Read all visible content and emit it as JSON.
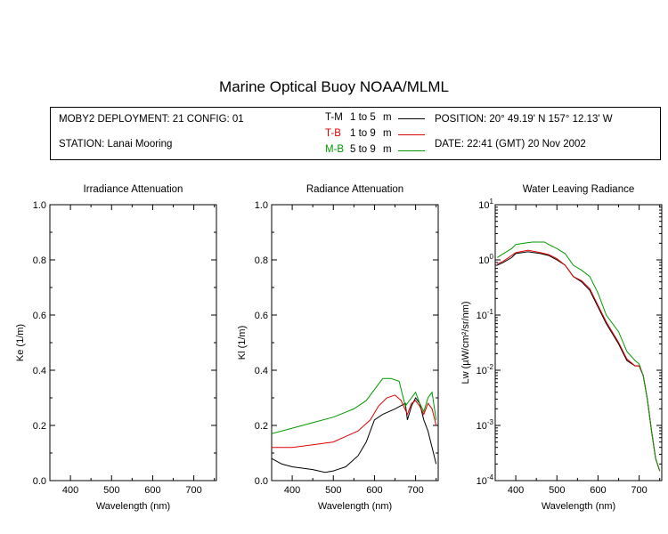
{
  "title": "Marine Optical Buoy NOAA/MLML",
  "info": {
    "deployment": "MOBY2 DEPLOYMENT: 21 CONFIG: 01",
    "station": "STATION: Lanai Mooring",
    "position": "POSITION: 20° 49.19' N   157° 12.13' W",
    "date": "DATE: 22:41 (GMT) 20 Nov 2002",
    "legend": [
      {
        "code": "T-M",
        "range": "1 to 5",
        "unit": "m",
        "color": "#000000"
      },
      {
        "code": "T-B",
        "range": "1 to 9",
        "unit": "m",
        "color": "#dd0000"
      },
      {
        "code": "M-B",
        "range": "5 to 9",
        "unit": "m",
        "color": "#009900"
      }
    ]
  },
  "chart_data": [
    {
      "type": "line",
      "title": "Irradiance Attenuation",
      "xlabel": "Wavelength (nm)",
      "ylabel": "Ke  (1/m)",
      "xlim": [
        350,
        755
      ],
      "ylim": [
        0.0,
        1.0
      ],
      "xticks": [
        400,
        500,
        600,
        700
      ],
      "yticks": [
        "0.0",
        "0.2",
        "0.4",
        "0.6",
        "0.8",
        "1.0"
      ],
      "series": []
    },
    {
      "type": "line",
      "title": "Radiance Attenuation",
      "xlabel": "Wavelength (nm)",
      "ylabel": "Kl  (1/m)",
      "xlim": [
        350,
        755
      ],
      "ylim": [
        0.0,
        1.0
      ],
      "xticks": [
        400,
        500,
        600,
        700
      ],
      "yticks": [
        "0.0",
        "0.2",
        "0.4",
        "0.6",
        "0.8",
        "1.0"
      ],
      "series": [
        {
          "name": "T-M",
          "color": "#000000",
          "x": [
            350,
            375,
            400,
            450,
            480,
            500,
            530,
            560,
            580,
            600,
            620,
            650,
            675,
            680,
            690,
            700,
            710,
            720,
            730,
            740,
            750
          ],
          "y": [
            0.08,
            0.06,
            0.05,
            0.04,
            0.03,
            0.035,
            0.05,
            0.09,
            0.14,
            0.22,
            0.24,
            0.26,
            0.28,
            0.22,
            0.27,
            0.3,
            0.28,
            0.22,
            0.18,
            0.12,
            0.06
          ]
        },
        {
          "name": "T-B",
          "color": "#dd0000",
          "x": [
            350,
            400,
            450,
            500,
            530,
            560,
            590,
            610,
            630,
            650,
            665,
            680,
            690,
            700,
            710,
            720,
            730,
            740,
            750
          ],
          "y": [
            0.12,
            0.12,
            0.13,
            0.14,
            0.16,
            0.18,
            0.22,
            0.27,
            0.3,
            0.31,
            0.29,
            0.24,
            0.28,
            0.29,
            0.27,
            0.24,
            0.28,
            0.26,
            0.2
          ]
        },
        {
          "name": "M-B",
          "color": "#009900",
          "x": [
            350,
            400,
            450,
            500,
            550,
            580,
            600,
            620,
            640,
            660,
            675,
            690,
            700,
            710,
            720,
            730,
            740,
            750
          ],
          "y": [
            0.17,
            0.19,
            0.21,
            0.23,
            0.26,
            0.29,
            0.33,
            0.37,
            0.37,
            0.36,
            0.27,
            0.3,
            0.32,
            0.28,
            0.25,
            0.3,
            0.32,
            0.22
          ]
        }
      ]
    },
    {
      "type": "line",
      "title": "Water Leaving Radiance",
      "xlabel": "Wavelength (nm)",
      "ylabel": "Lw  (µW/cm²/sr/nm)",
      "log_y": true,
      "xlim": [
        350,
        755
      ],
      "ylim": [
        0.0001,
        10
      ],
      "xticks": [
        400,
        500,
        600,
        700
      ],
      "ytick_mantissa": "10",
      "ytick_exponents": [
        "1",
        "0",
        "-1",
        "-2",
        "-3",
        "-4"
      ],
      "series": [
        {
          "name": "T-M",
          "color": "#000000",
          "x": [
            355,
            370,
            390,
            400,
            430,
            460,
            480,
            500,
            520,
            540,
            560,
            580,
            600,
            620,
            650,
            670,
            690,
            700,
            710,
            720,
            730,
            740,
            750
          ],
          "y": [
            0.8,
            0.9,
            1.1,
            1.3,
            1.4,
            1.3,
            1.2,
            1.0,
            0.8,
            0.5,
            0.4,
            0.28,
            0.14,
            0.07,
            0.03,
            0.015,
            0.012,
            0.012,
            0.008,
            0.003,
            0.0008,
            0.00025,
            0.00015
          ]
        },
        {
          "name": "T-B",
          "color": "#dd0000",
          "x": [
            355,
            370,
            390,
            400,
            430,
            460,
            480,
            500,
            520,
            540,
            560,
            580,
            600,
            620,
            650,
            670,
            690,
            700,
            710,
            720,
            730,
            740,
            750
          ],
          "y": [
            0.85,
            0.95,
            1.2,
            1.35,
            1.5,
            1.35,
            1.25,
            1.05,
            0.8,
            0.5,
            0.42,
            0.3,
            0.15,
            0.075,
            0.032,
            0.016,
            0.012,
            0.012,
            0.008,
            0.003,
            0.0008,
            0.00025,
            0.00015
          ]
        },
        {
          "name": "M-B",
          "color": "#009900",
          "x": [
            355,
            370,
            390,
            400,
            420,
            440,
            470,
            480,
            500,
            520,
            540,
            560,
            580,
            600,
            620,
            650,
            670,
            690,
            700,
            710,
            720,
            730,
            740,
            750
          ],
          "y": [
            1.1,
            1.3,
            1.6,
            1.9,
            2.0,
            2.1,
            2.1,
            1.9,
            1.6,
            1.3,
            0.8,
            0.65,
            0.5,
            0.25,
            0.1,
            0.05,
            0.022,
            0.015,
            0.013,
            0.008,
            0.003,
            0.0008,
            0.00025,
            0.00015
          ]
        }
      ]
    }
  ]
}
